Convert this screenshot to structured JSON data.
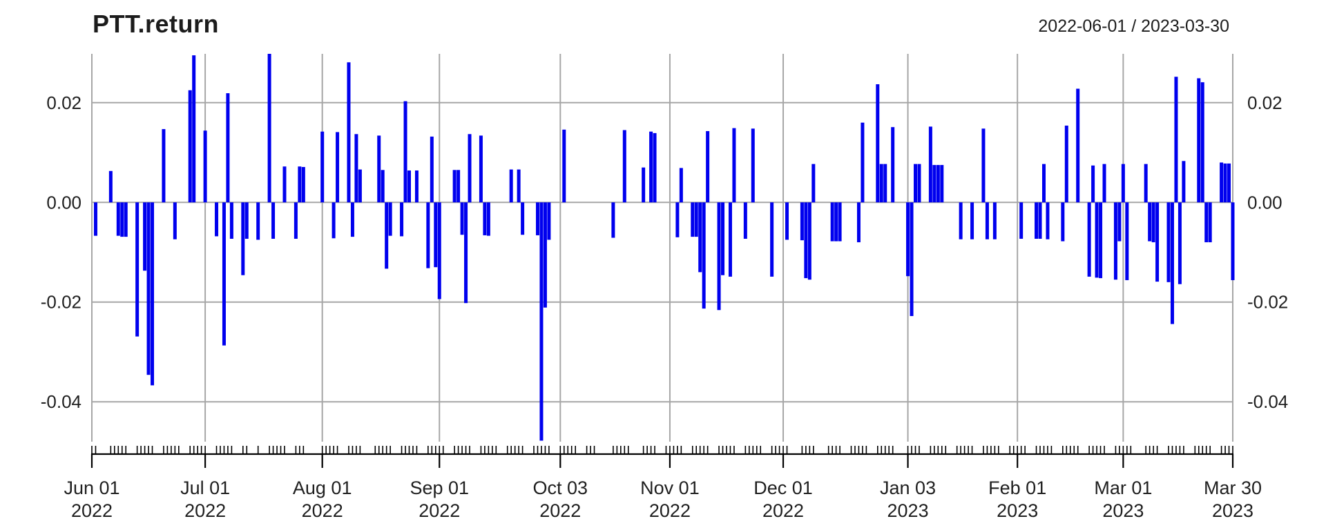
{
  "header": {
    "title": "PTT.return",
    "date_range": "2022-06-01 / 2023-03-30"
  },
  "chart_data": {
    "type": "bar",
    "title": "PTT.return",
    "subtitle": "2022-06-01 / 2023-03-30",
    "xlabel": "",
    "ylabel": "",
    "legend": "none",
    "grid": true,
    "bar_color": "#0000EE",
    "grid_color": "#A6A6A6",
    "axis_color": "#000000",
    "text_color": "#1f1f1f",
    "x_start": "2022-06-01",
    "x_end": "2023-03-30",
    "ylim": [
      -0.048,
      0.0298
    ],
    "y_ticks": [
      {
        "value": 0.02,
        "label": "0.02"
      },
      {
        "value": 0.0,
        "label": "0.00"
      },
      {
        "value": -0.02,
        "label": "-0.02"
      },
      {
        "value": -0.04,
        "label": "-0.04"
      }
    ],
    "x_ticks": [
      {
        "date": "2022-06-01",
        "line1": "Jun 01",
        "line2": "2022"
      },
      {
        "date": "2022-07-01",
        "line1": "Jul 01",
        "line2": "2022"
      },
      {
        "date": "2022-08-01",
        "line1": "Aug 01",
        "line2": "2022"
      },
      {
        "date": "2022-09-01",
        "line1": "Sep 01",
        "line2": "2022"
      },
      {
        "date": "2022-10-03",
        "line1": "Oct 03",
        "line2": "2022"
      },
      {
        "date": "2022-11-01",
        "line1": "Nov 01",
        "line2": "2022"
      },
      {
        "date": "2022-12-01",
        "line1": "Dec 01",
        "line2": "2022"
      },
      {
        "date": "2023-01-03",
        "line1": "Jan 03",
        "line2": "2023"
      },
      {
        "date": "2023-02-01",
        "line1": "Feb 01",
        "line2": "2023"
      },
      {
        "date": "2023-03-01",
        "line1": "Mar 01",
        "line2": "2023"
      },
      {
        "date": "2023-03-30",
        "line1": "Mar 30",
        "line2": "2023"
      }
    ],
    "series": [
      [
        "2022-06-01",
        0
      ],
      [
        "2022-06-02",
        -0.0067
      ],
      [
        "2022-06-06",
        0.0063
      ],
      [
        "2022-06-07",
        0
      ],
      [
        "2022-06-08",
        -0.0067
      ],
      [
        "2022-06-09",
        -0.0069
      ],
      [
        "2022-06-10",
        -0.0069
      ],
      [
        "2022-06-13",
        -0.0269
      ],
      [
        "2022-06-14",
        0
      ],
      [
        "2022-06-15",
        -0.0137
      ],
      [
        "2022-06-16",
        -0.0346
      ],
      [
        "2022-06-17",
        -0.0367
      ],
      [
        "2022-06-20",
        0.0147
      ],
      [
        "2022-06-21",
        0
      ],
      [
        "2022-06-22",
        0
      ],
      [
        "2022-06-23",
        -0.0074
      ],
      [
        "2022-06-24",
        0
      ],
      [
        "2022-06-27",
        0.0225
      ],
      [
        "2022-06-28",
        0.0295
      ],
      [
        "2022-06-29",
        0
      ],
      [
        "2022-06-30",
        0
      ],
      [
        "2022-07-01",
        0.0144
      ],
      [
        "2022-07-04",
        -0.0068
      ],
      [
        "2022-07-05",
        0
      ],
      [
        "2022-07-06",
        -0.0287
      ],
      [
        "2022-07-07",
        0.0219
      ],
      [
        "2022-07-08",
        -0.0073
      ],
      [
        "2022-07-11",
        -0.0146
      ],
      [
        "2022-07-12",
        -0.0073
      ],
      [
        "2022-07-15",
        -0.0075
      ],
      [
        "2022-07-18",
        0.0298
      ],
      [
        "2022-07-19",
        -0.0073
      ],
      [
        "2022-07-20",
        0
      ],
      [
        "2022-07-21",
        0
      ],
      [
        "2022-07-22",
        0.0072
      ],
      [
        "2022-07-25",
        -0.0073
      ],
      [
        "2022-07-26",
        0.0072
      ],
      [
        "2022-07-27",
        0.0071
      ],
      [
        "2022-08-01",
        0.0142
      ],
      [
        "2022-08-02",
        0
      ],
      [
        "2022-08-03",
        0
      ],
      [
        "2022-08-04",
        -0.0072
      ],
      [
        "2022-08-05",
        0.0141
      ],
      [
        "2022-08-08",
        0.0281
      ],
      [
        "2022-08-09",
        -0.0069
      ],
      [
        "2022-08-10",
        0.0137
      ],
      [
        "2022-08-11",
        0.0066
      ],
      [
        "2022-08-15",
        0
      ],
      [
        "2022-08-16",
        0.0134
      ],
      [
        "2022-08-17",
        0.0065
      ],
      [
        "2022-08-18",
        -0.0133
      ],
      [
        "2022-08-19",
        -0.0067
      ],
      [
        "2022-08-22",
        -0.0068
      ],
      [
        "2022-08-23",
        0.0203
      ],
      [
        "2022-08-24",
        0.0064
      ],
      [
        "2022-08-25",
        0
      ],
      [
        "2022-08-26",
        0.0064
      ],
      [
        "2022-08-29",
        -0.0132
      ],
      [
        "2022-08-30",
        0.0132
      ],
      [
        "2022-08-31",
        -0.013
      ],
      [
        "2022-09-01",
        -0.0194
      ],
      [
        "2022-09-02",
        0
      ],
      [
        "2022-09-05",
        0.0065
      ],
      [
        "2022-09-06",
        0.0065
      ],
      [
        "2022-09-07",
        -0.0065
      ],
      [
        "2022-09-08",
        -0.0202
      ],
      [
        "2022-09-09",
        0.0137
      ],
      [
        "2022-09-12",
        0.0134
      ],
      [
        "2022-09-13",
        -0.0066
      ],
      [
        "2022-09-14",
        -0.0067
      ],
      [
        "2022-09-15",
        0
      ],
      [
        "2022-09-16",
        0
      ],
      [
        "2022-09-19",
        0
      ],
      [
        "2022-09-20",
        0.0066
      ],
      [
        "2022-09-21",
        0
      ],
      [
        "2022-09-22",
        0.0066
      ],
      [
        "2022-09-23",
        -0.0065
      ],
      [
        "2022-09-26",
        0
      ],
      [
        "2022-09-27",
        -0.0066
      ],
      [
        "2022-09-28",
        -0.0478
      ],
      [
        "2022-09-29",
        -0.0211
      ],
      [
        "2022-09-30",
        -0.0075
      ],
      [
        "2022-10-03",
        0
      ],
      [
        "2022-10-04",
        0.0146
      ],
      [
        "2022-10-05",
        0
      ],
      [
        "2022-10-06",
        0
      ],
      [
        "2022-10-07",
        0
      ],
      [
        "2022-10-10",
        0
      ],
      [
        "2022-10-11",
        0
      ],
      [
        "2022-10-12",
        0
      ],
      [
        "2022-10-17",
        -0.0071
      ],
      [
        "2022-10-18",
        0
      ],
      [
        "2022-10-19",
        0
      ],
      [
        "2022-10-20",
        0.0145
      ],
      [
        "2022-10-21",
        0
      ],
      [
        "2022-10-25",
        0.007
      ],
      [
        "2022-10-26",
        0
      ],
      [
        "2022-10-27",
        0.0142
      ],
      [
        "2022-10-28",
        0.0139
      ],
      [
        "2022-10-31",
        0
      ],
      [
        "2022-11-01",
        0
      ],
      [
        "2022-11-02",
        0
      ],
      [
        "2022-11-03",
        -0.007
      ],
      [
        "2022-11-04",
        0.0069
      ],
      [
        "2022-11-07",
        -0.0069
      ],
      [
        "2022-11-08",
        -0.0069
      ],
      [
        "2022-11-09",
        -0.014
      ],
      [
        "2022-11-10",
        -0.0213
      ],
      [
        "2022-11-11",
        0.0143
      ],
      [
        "2022-11-14",
        -0.0216
      ],
      [
        "2022-11-15",
        -0.0146
      ],
      [
        "2022-11-16",
        0
      ],
      [
        "2022-11-17",
        -0.0149
      ],
      [
        "2022-11-18",
        0.0149
      ],
      [
        "2022-11-21",
        -0.0073
      ],
      [
        "2022-11-22",
        0
      ],
      [
        "2022-11-23",
        0.0148
      ],
      [
        "2022-11-24",
        0
      ],
      [
        "2022-11-25",
        0
      ],
      [
        "2022-11-28",
        -0.0149
      ],
      [
        "2022-11-29",
        0
      ],
      [
        "2022-11-30",
        0
      ],
      [
        "2022-12-01",
        0
      ],
      [
        "2022-12-02",
        -0.0075
      ],
      [
        "2022-12-06",
        -0.0076
      ],
      [
        "2022-12-07",
        -0.0152
      ],
      [
        "2022-12-08",
        -0.0155
      ],
      [
        "2022-12-09",
        0.0077
      ],
      [
        "2022-12-13",
        0
      ],
      [
        "2022-12-14",
        -0.0078
      ],
      [
        "2022-12-15",
        -0.0078
      ],
      [
        "2022-12-16",
        -0.0078
      ],
      [
        "2022-12-19",
        0
      ],
      [
        "2022-12-20",
        0
      ],
      [
        "2022-12-21",
        -0.008
      ],
      [
        "2022-12-22",
        0.016
      ],
      [
        "2022-12-23",
        0
      ],
      [
        "2022-12-26",
        0.0237
      ],
      [
        "2022-12-27",
        0.0077
      ],
      [
        "2022-12-28",
        0.0077
      ],
      [
        "2022-12-29",
        0
      ],
      [
        "2022-12-30",
        0.0151
      ],
      [
        "2023-01-03",
        -0.0148
      ],
      [
        "2023-01-04",
        -0.0228
      ],
      [
        "2023-01-05",
        0.0077
      ],
      [
        "2023-01-06",
        0.0077
      ],
      [
        "2023-01-09",
        0.0152
      ],
      [
        "2023-01-10",
        0.0075
      ],
      [
        "2023-01-11",
        0.0075
      ],
      [
        "2023-01-12",
        0.0075
      ],
      [
        "2023-01-13",
        0
      ],
      [
        "2023-01-16",
        0
      ],
      [
        "2023-01-17",
        -0.0074
      ],
      [
        "2023-01-18",
        0
      ],
      [
        "2023-01-19",
        0
      ],
      [
        "2023-01-20",
        -0.0074
      ],
      [
        "2023-01-23",
        0.0148
      ],
      [
        "2023-01-24",
        -0.0074
      ],
      [
        "2023-01-25",
        0
      ],
      [
        "2023-01-26",
        -0.0074
      ],
      [
        "2023-01-27",
        0
      ],
      [
        "2023-01-30",
        0
      ],
      [
        "2023-01-31",
        0
      ],
      [
        "2023-02-01",
        0
      ],
      [
        "2023-02-02",
        -0.0073
      ],
      [
        "2023-02-03",
        0
      ],
      [
        "2023-02-06",
        -0.0073
      ],
      [
        "2023-02-07",
        -0.0073
      ],
      [
        "2023-02-08",
        0.0077
      ],
      [
        "2023-02-09",
        -0.0074
      ],
      [
        "2023-02-10",
        0
      ],
      [
        "2023-02-13",
        -0.0078
      ],
      [
        "2023-02-14",
        0.0154
      ],
      [
        "2023-02-15",
        0
      ],
      [
        "2023-02-16",
        0
      ],
      [
        "2023-02-17",
        0.0228
      ],
      [
        "2023-02-20",
        -0.0149
      ],
      [
        "2023-02-21",
        0.0074
      ],
      [
        "2023-02-22",
        -0.0151
      ],
      [
        "2023-02-23",
        -0.0152
      ],
      [
        "2023-02-24",
        0.0077
      ],
      [
        "2023-02-27",
        -0.0155
      ],
      [
        "2023-02-28",
        -0.0078
      ],
      [
        "2023-03-01",
        0.0077
      ],
      [
        "2023-03-02",
        -0.0156
      ],
      [
        "2023-03-03",
        0
      ],
      [
        "2023-03-07",
        0.0077
      ],
      [
        "2023-03-08",
        -0.0078
      ],
      [
        "2023-03-09",
        -0.008
      ],
      [
        "2023-03-10",
        -0.0159
      ],
      [
        "2023-03-13",
        -0.016
      ],
      [
        "2023-03-14",
        -0.0244
      ],
      [
        "2023-03-15",
        0.0252
      ],
      [
        "2023-03-16",
        -0.0164
      ],
      [
        "2023-03-17",
        0.0083
      ],
      [
        "2023-03-20",
        0
      ],
      [
        "2023-03-21",
        0.0249
      ],
      [
        "2023-03-22",
        0.0241
      ],
      [
        "2023-03-23",
        -0.008
      ],
      [
        "2023-03-24",
        -0.008
      ],
      [
        "2023-03-27",
        0.008
      ],
      [
        "2023-03-28",
        0.0078
      ],
      [
        "2023-03-29",
        0.0078
      ],
      [
        "2023-03-30",
        -0.0156
      ]
    ]
  }
}
